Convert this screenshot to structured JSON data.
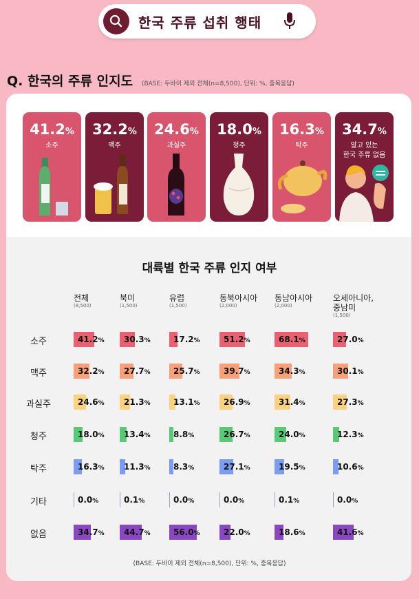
{
  "search": {
    "title": "한국 주류 섭취 행태"
  },
  "question": {
    "title": "Q. 한국의 주류 인지도",
    "note": "(BASE: 두바이 제외 전체(n=8,500), 단위: %, 중복응답)"
  },
  "cards": [
    {
      "value": "41.2",
      "unit": "%",
      "label": "소주",
      "bg": "#d9556d",
      "icon": "soju-bottle-icon"
    },
    {
      "value": "32.2",
      "unit": "%",
      "label": "맥주",
      "bg": "#7b1d38",
      "icon": "beer-icon"
    },
    {
      "value": "24.6",
      "unit": "%",
      "label": "과실주",
      "bg": "#d9556d",
      "icon": "wine-bottle-icon"
    },
    {
      "value": "18.0",
      "unit": "%",
      "label": "청주",
      "bg": "#7b1d38",
      "icon": "sake-bottle-icon"
    },
    {
      "value": "16.3",
      "unit": "%",
      "label": "탁주",
      "bg": "#d9556d",
      "icon": "teapot-icon"
    },
    {
      "value": "34.7",
      "unit": "%",
      "label": "알고 있는\n한국 주류 없음",
      "bg": "#7b1d38",
      "icon": "person-icon"
    }
  ],
  "colors": {
    "brand": "#6f1c31",
    "rows": [
      "#e96170",
      "#f7a07a",
      "#fcd27e",
      "#59c975",
      "#7b9cf1",
      "#9aa0b8",
      "#8a47c2"
    ]
  },
  "chart_data": {
    "type": "table",
    "title": "대륙별 한국 주류 인지 여부",
    "unit": "%",
    "columns": [
      {
        "name": "전체",
        "n": "(8,500)"
      },
      {
        "name": "북미",
        "n": "(1,500)"
      },
      {
        "name": "유럽",
        "n": "(1,500)"
      },
      {
        "name": "동북아시아",
        "n": "(2,000)"
      },
      {
        "name": "동남아시아",
        "n": "(2,000)"
      },
      {
        "name": "오세아니아,\n중남미",
        "n": "(1,500)"
      }
    ],
    "rows": [
      {
        "name": "소주",
        "values": [
          41.2,
          30.3,
          17.2,
          51.2,
          68.1,
          27.0
        ]
      },
      {
        "name": "맥주",
        "values": [
          32.2,
          27.7,
          25.7,
          39.7,
          34.3,
          30.1
        ]
      },
      {
        "name": "과실주",
        "values": [
          24.6,
          21.3,
          13.1,
          26.9,
          31.4,
          27.3
        ]
      },
      {
        "name": "청주",
        "values": [
          18.0,
          13.4,
          8.8,
          26.7,
          24.0,
          12.3
        ]
      },
      {
        "name": "탁주",
        "values": [
          16.3,
          11.3,
          8.3,
          27.1,
          19.5,
          10.6
        ]
      },
      {
        "name": "기타",
        "values": [
          0.0,
          0.1,
          0.0,
          0.0,
          0.1,
          0.0
        ]
      },
      {
        "name": "없음",
        "values": [
          34.7,
          44.7,
          56.0,
          22.0,
          18.6,
          41.6
        ]
      }
    ],
    "footnote": "(BASE: 두바이 제외 전체(n=8,500), 단위: %, 중복응답)"
  }
}
